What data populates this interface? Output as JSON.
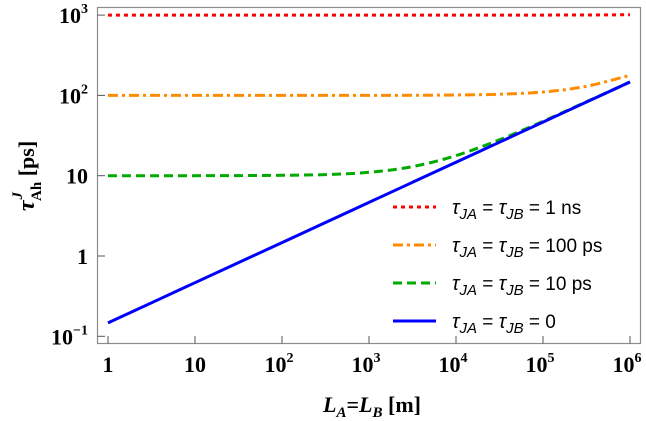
{
  "chart_data": {
    "type": "line",
    "title": "",
    "xlabel": "L_A=L_B [m]",
    "ylabel": "τ^J_Ah [ps]",
    "xscale": "log",
    "yscale": "log",
    "xlim": [
      1,
      1000000
    ],
    "ylim": [
      0.1,
      1000
    ],
    "grid": false,
    "legend_position": "lower right",
    "x_ticks": [
      {
        "base": "1",
        "exp": ""
      },
      {
        "base": "10",
        "exp": ""
      },
      {
        "base": "10",
        "exp": "2"
      },
      {
        "base": "10",
        "exp": "3"
      },
      {
        "base": "10",
        "exp": "4"
      },
      {
        "base": "10",
        "exp": "5"
      },
      {
        "base": "10",
        "exp": "6"
      }
    ],
    "y_ticks": [
      {
        "base": "10",
        "exp": "3",
        "value": 1000
      },
      {
        "base": "10",
        "exp": "2",
        "value": 100
      },
      {
        "base": "10",
        "exp": "",
        "value": 10
      },
      {
        "base": "1",
        "exp": "",
        "value": 1
      },
      {
        "base": "10",
        "exp": "−1",
        "value": 0.1
      }
    ],
    "x": [
      1,
      3.16,
      10,
      31.6,
      100,
      316,
      1000,
      3162,
      10000,
      31623,
      100000,
      316228,
      1000000
    ],
    "series": [
      {
        "name": "τJA = τJB = 1 ns",
        "color": "#ff0000",
        "style": "dotted",
        "values": [
          1000,
          1000,
          1000,
          1000,
          1000,
          1000,
          1000,
          1000,
          1000.1,
          1000.3,
          1001.1,
          1003.4,
          1010.8
        ]
      },
      {
        "name": "τJA = τJB = 100 ps",
        "color": "#ff8c00",
        "style": "dashdot",
        "values": [
          100,
          100,
          100,
          100,
          100,
          100.03,
          100.1,
          100.3,
          101.1,
          103.4,
          110.3,
          129.8,
          177.9
        ]
      },
      {
        "name": "τJA = τJB = 10 ps",
        "color": "#00aa00",
        "style": "dashed",
        "values": [
          10,
          10,
          10.01,
          10.03,
          10.11,
          10.33,
          11.03,
          12.98,
          17.8,
          27.97,
          47.56,
          83.3,
          147.3
        ]
      },
      {
        "name": "τJA = τJB = 0",
        "color": "#0000ff",
        "style": "solid",
        "values": [
          0.147,
          0.261,
          0.465,
          0.827,
          1.47,
          2.61,
          4.65,
          8.27,
          14.7,
          26.1,
          46.5,
          82.7,
          147
        ]
      }
    ]
  },
  "legend": [
    {
      "pre": "τ",
      "sub1": "JA",
      "mid": " = ",
      "tau2": "τ",
      "sub2": "JB",
      "post": " = 1 ns"
    },
    {
      "pre": "τ",
      "sub1": "JA",
      "mid": " = ",
      "tau2": "τ",
      "sub2": "JB",
      "post": " = 100 ps"
    },
    {
      "pre": "τ",
      "sub1": "JA",
      "mid": " = ",
      "tau2": "τ",
      "sub2": "JB",
      "post": " = 10 ps"
    },
    {
      "pre": "τ",
      "sub1": "JA",
      "mid": " = ",
      "tau2": "τ",
      "sub2": "JB",
      "post": " = 0"
    }
  ],
  "labels": {
    "x_main1": "L",
    "x_sub1": "A",
    "x_eq": "=",
    "x_main2": "L",
    "x_sub2": "B",
    "x_unit": " [m]",
    "y_main": "τ",
    "y_sup": "J",
    "y_sub": "Ah",
    "y_unit": " [ps]"
  }
}
